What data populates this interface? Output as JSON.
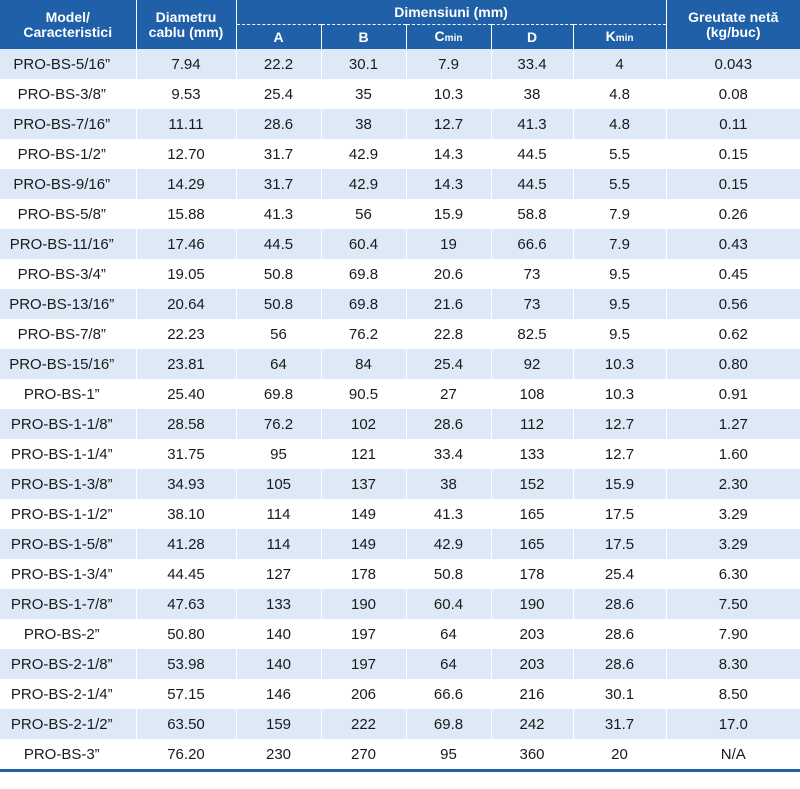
{
  "headers": {
    "model": "Model/\nCaracteristici",
    "diameter": "Diametru\ncablu (mm)",
    "dimensions_group": "Dimensiuni (mm)",
    "a": "A",
    "b": "B",
    "c_main": "C",
    "c_sub": "min",
    "d": "D",
    "k_main": "K",
    "k_sub": "min",
    "weight": "Greutate netă\n(kg/buc)"
  },
  "rows": [
    {
      "model": "PRO-BS-5/16”",
      "dia": "7.94",
      "a": "22.2",
      "b": "30.1",
      "c": "7.9",
      "d": "33.4",
      "k": "4",
      "w": "0.043"
    },
    {
      "model": "PRO-BS-3/8”",
      "dia": "9.53",
      "a": "25.4",
      "b": "35",
      "c": "10.3",
      "d": "38",
      "k": "4.8",
      "w": "0.08"
    },
    {
      "model": "PRO-BS-7/16”",
      "dia": "11.11",
      "a": "28.6",
      "b": "38",
      "c": "12.7",
      "d": "41.3",
      "k": "4.8",
      "w": "0.11"
    },
    {
      "model": "PRO-BS-1/2”",
      "dia": "12.70",
      "a": "31.7",
      "b": "42.9",
      "c": "14.3",
      "d": "44.5",
      "k": "5.5",
      "w": "0.15"
    },
    {
      "model": "PRO-BS-9/16”",
      "dia": "14.29",
      "a": "31.7",
      "b": "42.9",
      "c": "14.3",
      "d": "44.5",
      "k": "5.5",
      "w": "0.15"
    },
    {
      "model": "PRO-BS-5/8”",
      "dia": "15.88",
      "a": "41.3",
      "b": "56",
      "c": "15.9",
      "d": "58.8",
      "k": "7.9",
      "w": "0.26"
    },
    {
      "model": "PRO-BS-11/16”",
      "dia": "17.46",
      "a": "44.5",
      "b": "60.4",
      "c": "19",
      "d": "66.6",
      "k": "7.9",
      "w": "0.43"
    },
    {
      "model": "PRO-BS-3/4”",
      "dia": "19.05",
      "a": "50.8",
      "b": "69.8",
      "c": "20.6",
      "d": "73",
      "k": "9.5",
      "w": "0.45"
    },
    {
      "model": "PRO-BS-13/16”",
      "dia": "20.64",
      "a": "50.8",
      "b": "69.8",
      "c": "21.6",
      "d": "73",
      "k": "9.5",
      "w": "0.56"
    },
    {
      "model": "PRO-BS-7/8”",
      "dia": "22.23",
      "a": "56",
      "b": "76.2",
      "c": "22.8",
      "d": "82.5",
      "k": "9.5",
      "w": "0.62"
    },
    {
      "model": "PRO-BS-15/16”",
      "dia": "23.81",
      "a": "64",
      "b": "84",
      "c": "25.4",
      "d": "92",
      "k": "10.3",
      "w": "0.80"
    },
    {
      "model": "PRO-BS-1”",
      "dia": "25.40",
      "a": "69.8",
      "b": "90.5",
      "c": "27",
      "d": "108",
      "k": "10.3",
      "w": "0.91"
    },
    {
      "model": "PRO-BS-1-1/8”",
      "dia": "28.58",
      "a": "76.2",
      "b": "102",
      "c": "28.6",
      "d": "112",
      "k": "12.7",
      "w": "1.27"
    },
    {
      "model": "PRO-BS-1-1/4”",
      "dia": "31.75",
      "a": "95",
      "b": "121",
      "c": "33.4",
      "d": "133",
      "k": "12.7",
      "w": "1.60"
    },
    {
      "model": "PRO-BS-1-3/8”",
      "dia": "34.93",
      "a": "105",
      "b": "137",
      "c": "38",
      "d": "152",
      "k": "15.9",
      "w": "2.30"
    },
    {
      "model": "PRO-BS-1-1/2”",
      "dia": "38.10",
      "a": "114",
      "b": "149",
      "c": "41.3",
      "d": "165",
      "k": "17.5",
      "w": "3.29"
    },
    {
      "model": "PRO-BS-1-5/8”",
      "dia": "41.28",
      "a": "114",
      "b": "149",
      "c": "42.9",
      "d": "165",
      "k": "17.5",
      "w": "3.29"
    },
    {
      "model": "PRO-BS-1-3/4”",
      "dia": "44.45",
      "a": "127",
      "b": "178",
      "c": "50.8",
      "d": "178",
      "k": "25.4",
      "w": "6.30"
    },
    {
      "model": "PRO-BS-1-7/8”",
      "dia": "47.63",
      "a": "133",
      "b": "190",
      "c": "60.4",
      "d": "190",
      "k": "28.6",
      "w": "7.50"
    },
    {
      "model": "PRO-BS-2”",
      "dia": "50.80",
      "a": "140",
      "b": "197",
      "c": "64",
      "d": "203",
      "k": "28.6",
      "w": "7.90"
    },
    {
      "model": "PRO-BS-2-1/8”",
      "dia": "53.98",
      "a": "140",
      "b": "197",
      "c": "64",
      "d": "203",
      "k": "28.6",
      "w": "8.30"
    },
    {
      "model": "PRO-BS-2-1/4”",
      "dia": "57.15",
      "a": "146",
      "b": "206",
      "c": "66.6",
      "d": "216",
      "k": "30.1",
      "w": "8.50"
    },
    {
      "model": "PRO-BS-2-1/2”",
      "dia": "63.50",
      "a": "159",
      "b": "222",
      "c": "69.8",
      "d": "242",
      "k": "31.7",
      "w": "17.0"
    },
    {
      "model": "PRO-BS-3”",
      "dia": "76.20",
      "a": "230",
      "b": "270",
      "c": "95",
      "d": "360",
      "k": "20",
      "w": "N/A"
    }
  ]
}
